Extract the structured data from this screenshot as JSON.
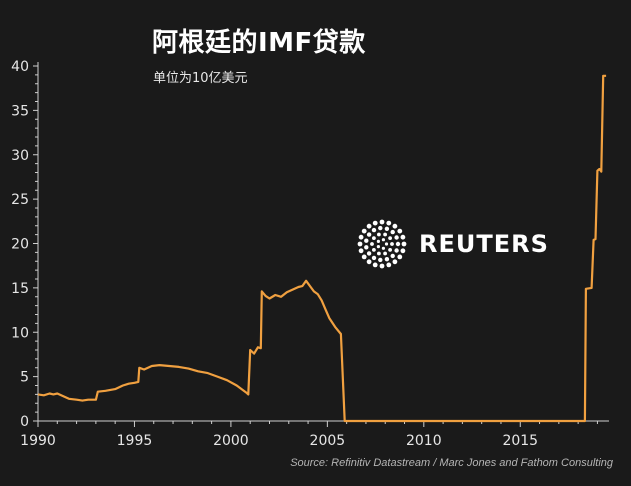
{
  "chart_data": {
    "type": "line",
    "title": "阿根廷的IMF贷款",
    "subtitle": "单位为10亿美元",
    "source": "Source: Refinitiv Datastream / Marc Jones and Fathom Consulting",
    "watermark": "REUTERS",
    "xlabel": "",
    "ylabel": "",
    "xlim": [
      1990,
      2019.6
    ],
    "ylim": [
      0,
      40
    ],
    "x_ticks": [
      1990,
      1995,
      2000,
      2005,
      2010,
      2015
    ],
    "y_ticks": [
      0,
      5,
      10,
      15,
      20,
      25,
      30,
      35,
      40
    ],
    "line_color": "#f0a040",
    "grid": false,
    "series": [
      {
        "name": "",
        "points": [
          [
            1990.0,
            3.0
          ],
          [
            1990.3,
            2.9
          ],
          [
            1990.6,
            3.1
          ],
          [
            1990.8,
            3.0
          ],
          [
            1991.0,
            3.1
          ],
          [
            1991.3,
            2.8
          ],
          [
            1991.6,
            2.5
          ],
          [
            1992.0,
            2.4
          ],
          [
            1992.3,
            2.3
          ],
          [
            1992.6,
            2.4
          ],
          [
            1993.0,
            2.4
          ],
          [
            1993.1,
            3.3
          ],
          [
            1993.5,
            3.4
          ],
          [
            1994.0,
            3.6
          ],
          [
            1994.4,
            4.0
          ],
          [
            1994.7,
            4.2
          ],
          [
            1995.0,
            4.3
          ],
          [
            1995.2,
            4.4
          ],
          [
            1995.25,
            6.0
          ],
          [
            1995.5,
            5.8
          ],
          [
            1995.9,
            6.2
          ],
          [
            1996.3,
            6.3
          ],
          [
            1996.8,
            6.2
          ],
          [
            1997.3,
            6.1
          ],
          [
            1997.8,
            5.9
          ],
          [
            1998.3,
            5.6
          ],
          [
            1998.8,
            5.4
          ],
          [
            1999.3,
            5.0
          ],
          [
            1999.8,
            4.6
          ],
          [
            2000.3,
            4.0
          ],
          [
            2000.8,
            3.2
          ],
          [
            2000.9,
            3.0
          ],
          [
            2001.0,
            8.0
          ],
          [
            2001.2,
            7.6
          ],
          [
            2001.4,
            8.3
          ],
          [
            2001.55,
            8.2
          ],
          [
            2001.6,
            14.6
          ],
          [
            2001.8,
            14.1
          ],
          [
            2002.0,
            13.8
          ],
          [
            2002.3,
            14.2
          ],
          [
            2002.6,
            14.0
          ],
          [
            2002.9,
            14.5
          ],
          [
            2003.2,
            14.8
          ],
          [
            2003.5,
            15.1
          ],
          [
            2003.7,
            15.2
          ],
          [
            2003.9,
            15.8
          ],
          [
            2004.1,
            15.2
          ],
          [
            2004.3,
            14.6
          ],
          [
            2004.5,
            14.3
          ],
          [
            2004.7,
            13.6
          ],
          [
            2004.9,
            12.6
          ],
          [
            2005.1,
            11.6
          ],
          [
            2005.4,
            10.6
          ],
          [
            2005.7,
            9.8
          ],
          [
            2005.9,
            0.0
          ],
          [
            2006.0,
            0.0
          ],
          [
            2018.35,
            0.0
          ],
          [
            2018.4,
            14.9
          ],
          [
            2018.7,
            15.0
          ],
          [
            2018.8,
            20.4
          ],
          [
            2018.9,
            20.5
          ],
          [
            2019.0,
            28.2
          ],
          [
            2019.1,
            28.4
          ],
          [
            2019.2,
            28.1
          ],
          [
            2019.3,
            38.9
          ],
          [
            2019.45,
            38.9
          ]
        ]
      }
    ]
  }
}
